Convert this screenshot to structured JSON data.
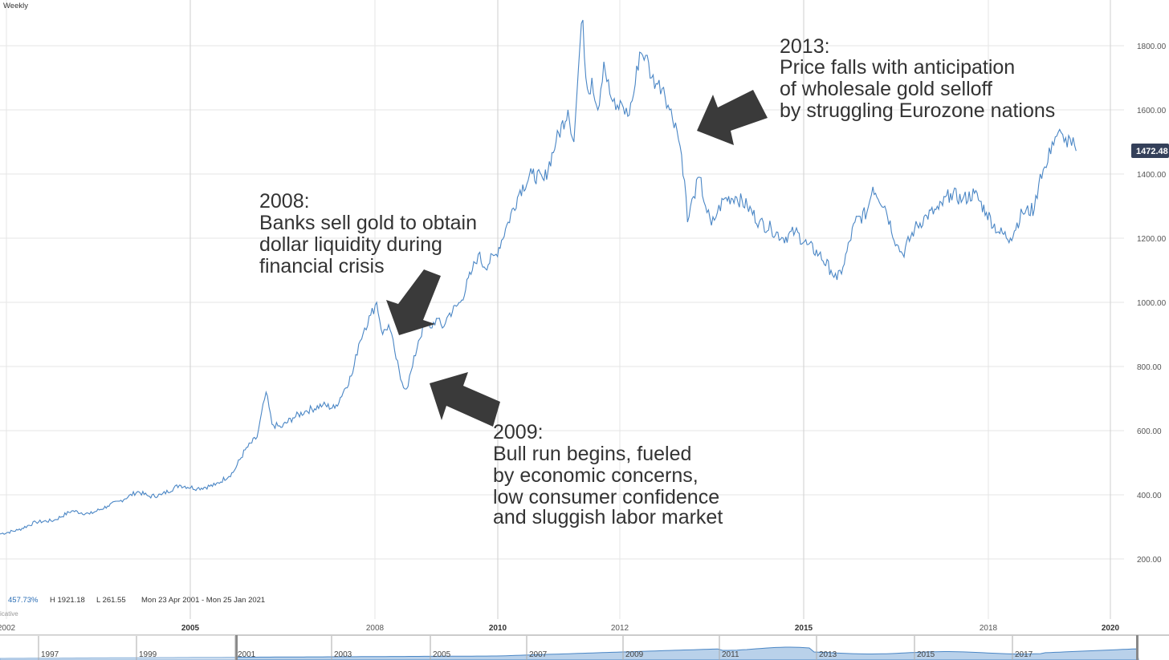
{
  "interval_label": "Weekly",
  "stats": {
    "change": "457.73%",
    "high": "H 1921.18",
    "low": "L 261.55",
    "range": "Mon 23 Apr 2001 - Mon 25 Jan 2021",
    "disclaimer": "icative"
  },
  "last_price_label": "1472.48",
  "colors": {
    "line": "#4a86c5",
    "grid": "#e6e6e6",
    "price_badge": "#34405a",
    "navigator_fill": "#b9d1ea",
    "arrow": "#3a3a3a"
  },
  "navigator": {
    "ticks": [
      "1997",
      "1999",
      "2001",
      "2003",
      "2005",
      "2007",
      "2009",
      "2011",
      "2013",
      "2015",
      "2017"
    ]
  },
  "annotations": [
    {
      "lines": [
        "2008:",
        "Banks sell gold to obtain",
        "dollar liquidity during",
        "financial crisis"
      ]
    },
    {
      "lines": [
        "2009:",
        "Bull run begins, fueled",
        "by economic concerns,",
        "low consumer confidence",
        "and sluggish labor market"
      ]
    },
    {
      "lines": [
        "2013:",
        "Price falls with anticipation",
        "of wholesale gold selloff",
        "by struggling Eurozone nations"
      ]
    }
  ],
  "chart_data": {
    "type": "line",
    "title": "",
    "xlabel": "",
    "ylabel": "",
    "ylim": [
      55,
      1900
    ],
    "xlim": [
      2001.9,
      2020.5
    ],
    "y_ticks": [
      "200.00",
      "400.00",
      "600.00",
      "800.00",
      "1000.00",
      "1200.00",
      "1400.00",
      "1600.00",
      "1800.00"
    ],
    "x_ticks": [
      {
        "label": "2002",
        "major": false
      },
      {
        "label": "2005",
        "major": true
      },
      {
        "label": "2008",
        "major": false
      },
      {
        "label": "2010",
        "major": true
      },
      {
        "label": "2012",
        "major": false
      },
      {
        "label": "2015",
        "major": true
      },
      {
        "label": "2018",
        "major": false
      },
      {
        "label": "2020",
        "major": true
      }
    ],
    "grid": true,
    "series": [
      {
        "name": "",
        "x": [
          2001.9,
          2002.2,
          2002.5,
          2002.8,
          2003.1,
          2003.4,
          2003.7,
          2003.9,
          2004.2,
          2004.4,
          2004.6,
          2004.9,
          2005.2,
          2005.5,
          2005.8,
          2006.0,
          2006.2,
          2006.35,
          2006.45,
          2006.6,
          2006.8,
          2007.0,
          2007.3,
          2007.5,
          2007.8,
          2007.9,
          2008.0,
          2008.1,
          2008.2,
          2008.3,
          2008.4,
          2008.5,
          2008.6,
          2008.7,
          2008.8,
          2008.9,
          2009.0,
          2009.1,
          2009.2,
          2009.3,
          2009.4,
          2009.6,
          2009.8,
          2009.9,
          2010.0,
          2010.2,
          2010.4,
          2010.6,
          2010.8,
          2011.0,
          2011.2,
          2011.4,
          2011.5,
          2011.6,
          2011.65,
          2011.7,
          2011.75,
          2011.8,
          2011.9,
          2012.0,
          2012.1,
          2012.2,
          2012.3,
          2012.4,
          2012.5,
          2012.6,
          2012.7,
          2012.8,
          2012.9,
          2013.0,
          2013.1,
          2013.2,
          2013.3,
          2013.35,
          2013.4,
          2013.5,
          2013.6,
          2013.7,
          2013.8,
          2013.9,
          2014.0,
          2014.2,
          2014.4,
          2014.6,
          2014.8,
          2015.0,
          2015.2,
          2015.4,
          2015.6,
          2015.8,
          2015.9,
          2016.0,
          2016.2,
          2016.4,
          2016.5,
          2016.7,
          2016.9,
          2017.0,
          2017.2,
          2017.4,
          2017.6,
          2017.8,
          2018.0,
          2018.2,
          2018.4,
          2018.6,
          2018.8,
          2019.0,
          2019.2,
          2019.3,
          2019.4,
          2019.5,
          2019.6,
          2019.7,
          2019.8,
          2019.9
        ],
        "values": [
          278,
          290,
          315,
          320,
          350,
          340,
          365,
          380,
          410,
          395,
          400,
          430,
          420,
          430,
          470,
          540,
          580,
          720,
          620,
          610,
          640,
          660,
          680,
          670,
          780,
          870,
          920,
          960,
          1000,
          900,
          930,
          850,
          760,
          730,
          800,
          880,
          930,
          920,
          950,
          920,
          960,
          1000,
          1100,
          1150,
          1110,
          1150,
          1250,
          1350,
          1400,
          1380,
          1500,
          1600,
          1500,
          1800,
          1880,
          1700,
          1650,
          1700,
          1600,
          1750,
          1650,
          1600,
          1620,
          1580,
          1650,
          1780,
          1770,
          1700,
          1680,
          1670,
          1600,
          1560,
          1460,
          1380,
          1250,
          1330,
          1390,
          1300,
          1240,
          1280,
          1320,
          1330,
          1300,
          1250,
          1230,
          1200,
          1220,
          1180,
          1150,
          1100,
          1070,
          1110,
          1250,
          1280,
          1360,
          1300,
          1180,
          1150,
          1230,
          1270,
          1290,
          1340,
          1320,
          1340,
          1280,
          1220,
          1200,
          1280,
          1290,
          1400,
          1420,
          1500,
          1530,
          1500,
          1510,
          1472
        ]
      }
    ],
    "last_value": 1472.48
  }
}
